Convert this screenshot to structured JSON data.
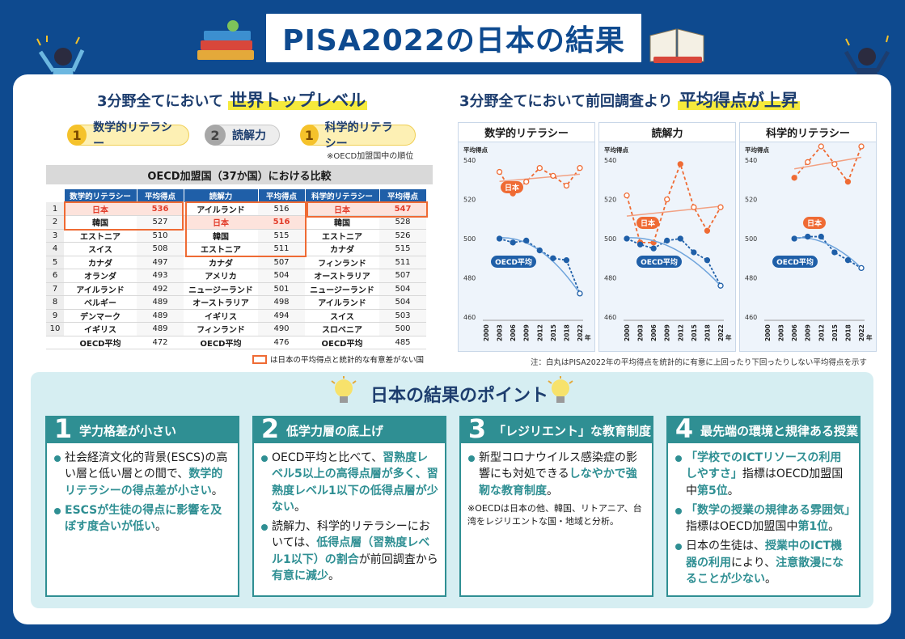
{
  "title": "PISA2022の日本の結果",
  "left_section": {
    "heading_prefix": "3分野全てにおいて",
    "heading_highlight": "世界トップレベル",
    "ranks": [
      {
        "rank": "1",
        "label": "数学的リテラシー",
        "color": "#f5c22b"
      },
      {
        "rank": "2",
        "label": "読解力",
        "color": "#a7a7a7"
      },
      {
        "rank": "1",
        "label": "科学的リテラシー",
        "color": "#f5c22b"
      }
    ],
    "rank_note": "※OECD加盟国中の順位",
    "comparison_title": "OECD加盟国（37か国）における比較",
    "table_headers": [
      "数学的リテラシー",
      "平均得点",
      "読解力",
      "平均得点",
      "科学的リテラシー",
      "平均得点"
    ],
    "rows": [
      {
        "n": "1",
        "m": "日本",
        "ms": "536",
        "r": "アイルランド",
        "rs": "516",
        "s": "日本",
        "ss": "547"
      },
      {
        "n": "2",
        "m": "韓国",
        "ms": "527",
        "r": "日本",
        "rs": "516",
        "s": "韓国",
        "ss": "528"
      },
      {
        "n": "3",
        "m": "エストニア",
        "ms": "510",
        "r": "韓国",
        "rs": "515",
        "s": "エストニア",
        "ss": "526"
      },
      {
        "n": "4",
        "m": "スイス",
        "ms": "508",
        "r": "エストニア",
        "rs": "511",
        "s": "カナダ",
        "ss": "515"
      },
      {
        "n": "5",
        "m": "カナダ",
        "ms": "497",
        "r": "カナダ",
        "rs": "507",
        "s": "フィンランド",
        "ss": "511"
      },
      {
        "n": "6",
        "m": "オランダ",
        "ms": "493",
        "r": "アメリカ",
        "rs": "504",
        "s": "オーストラリア",
        "ss": "507"
      },
      {
        "n": "7",
        "m": "アイルランド",
        "ms": "492",
        "r": "ニュージーランド",
        "rs": "501",
        "s": "ニュージーランド",
        "ss": "504"
      },
      {
        "n": "8",
        "m": "ベルギー",
        "ms": "489",
        "r": "オーストラリア",
        "rs": "498",
        "s": "アイルランド",
        "ss": "504"
      },
      {
        "n": "9",
        "m": "デンマーク",
        "ms": "489",
        "r": "イギリス",
        "rs": "494",
        "s": "スイス",
        "ss": "503"
      },
      {
        "n": "10",
        "m": "イギリス",
        "ms": "489",
        "r": "フィンランド",
        "rs": "490",
        "s": "スロベニア",
        "ss": "500"
      },
      {
        "n": "",
        "m": "OECD平均",
        "ms": "472",
        "r": "OECD平均",
        "rs": "476",
        "s": "OECD平均",
        "ss": "485"
      }
    ],
    "legend_text": "は日本の平均得点と統計的な有意差がない国"
  },
  "right_section": {
    "heading_prefix": "3分野全てにおいて前回調査より",
    "heading_highlight": "平均得点が上昇",
    "note": "注：白丸はPISA2022年の平均得点を統計的に有意に上回ったり下回ったりしない平均得点を示す"
  },
  "chart_data": [
    {
      "type": "line",
      "title": "数学的リテラシー",
      "ylabel": "平均得点",
      "xlabel": "年",
      "x": [
        "2000",
        "2003",
        "2006",
        "2009",
        "2012",
        "2015",
        "2018",
        "2022"
      ],
      "ylim": [
        460,
        540
      ],
      "yticks": [
        460,
        480,
        500,
        520,
        540
      ],
      "series": [
        {
          "name": "日本",
          "values": [
            null,
            534,
            523,
            529,
            536,
            532,
            527,
            536
          ],
          "open": [
            0,
            1,
            0,
            1,
            1,
            1,
            1,
            1
          ],
          "color": "#ef6b34"
        },
        {
          "name": "OECD平均",
          "values": [
            null,
            500,
            498,
            499,
            494,
            490,
            489,
            472
          ],
          "open": [
            0,
            0,
            0,
            0,
            0,
            0,
            0,
            1
          ],
          "color": "#1f5fa8"
        }
      ]
    },
    {
      "type": "line",
      "title": "読解力",
      "ylabel": "平均得点",
      "xlabel": "年",
      "x": [
        "2000",
        "2003",
        "2006",
        "2009",
        "2012",
        "2015",
        "2018",
        "2022"
      ],
      "ylim": [
        460,
        540
      ],
      "yticks": [
        460,
        480,
        500,
        520,
        540
      ],
      "series": [
        {
          "name": "日本",
          "values": [
            522,
            498,
            498,
            520,
            538,
            516,
            504,
            516
          ],
          "open": [
            1,
            0,
            0,
            1,
            0,
            1,
            0,
            1
          ],
          "color": "#ef6b34"
        },
        {
          "name": "OECD平均",
          "values": [
            500,
            497,
            495,
            499,
            500,
            493,
            489,
            476
          ],
          "open": [
            0,
            0,
            0,
            0,
            0,
            0,
            0,
            1
          ],
          "color": "#1f5fa8"
        }
      ]
    },
    {
      "type": "line",
      "title": "科学的リテラシー",
      "ylabel": "平均得点",
      "xlabel": "年",
      "x": [
        "2000",
        "2003",
        "2006",
        "2009",
        "2012",
        "2015",
        "2018",
        "2022"
      ],
      "ylim": [
        460,
        540
      ],
      "yticks": [
        460,
        480,
        500,
        520,
        540
      ],
      "series": [
        {
          "name": "日本",
          "values": [
            null,
            null,
            531,
            539,
            547,
            538,
            529,
            547
          ],
          "open": [
            0,
            0,
            0,
            1,
            1,
            1,
            0,
            1
          ],
          "color": "#ef6b34"
        },
        {
          "name": "OECD平均",
          "values": [
            null,
            null,
            500,
            501,
            501,
            493,
            489,
            485
          ],
          "open": [
            0,
            0,
            0,
            0,
            0,
            0,
            0,
            1
          ],
          "color": "#1f5fa8"
        }
      ]
    }
  ],
  "points": {
    "title": "日本の結果のポイント",
    "cards": [
      {
        "number": "1",
        "title": "学力格差が小さい",
        "items": [
          [
            {
              "t": "社会経済文化的背景(ESCS)の高い層と低い層との間で、"
            },
            {
              "t": "数学的リテラシーの得点差が小さい",
              "h": true
            },
            {
              "t": "。"
            }
          ],
          [
            {
              "t": "ESCSが生徒の得点に影響を及ぼす度合いが低い",
              "h": true
            },
            {
              "t": "。"
            }
          ]
        ]
      },
      {
        "number": "2",
        "title": "低学力層の底上げ",
        "items": [
          [
            {
              "t": "OECD平均と比べて、"
            },
            {
              "t": "習熟度レベル5以上の高得点層が多く、習熟度レベル1以下の低得点層が少ない",
              "h": true
            },
            {
              "t": "。"
            }
          ],
          [
            {
              "t": "読解力、科学的リテラシーにおいては、"
            },
            {
              "t": "低得点層（習熟度レベル1以下）の割合",
              "h": true
            },
            {
              "t": "が前回調査から"
            },
            {
              "t": "有意に減少",
              "h": true
            },
            {
              "t": "。"
            }
          ]
        ]
      },
      {
        "number": "3",
        "title": "「レジリエント」な教育制度",
        "items": [
          [
            {
              "t": "新型コロナウイルス感染症の影響にも対処できる"
            },
            {
              "t": "しなやかで強靭な教育制度",
              "h": true
            },
            {
              "t": "。"
            }
          ]
        ],
        "note": "※OECDは日本の他、韓国、リトアニア、台湾をレジリエントな国・地域と分析。"
      },
      {
        "number": "4",
        "title": "最先端の環境と規律ある授業",
        "items": [
          [
            {
              "t": "「学校でのICTリソースの利用しやすさ」",
              "h": true
            },
            {
              "t": "指標はOECD加盟国中"
            },
            {
              "t": "第5位",
              "h": true
            },
            {
              "t": "。"
            }
          ],
          [
            {
              "t": "「数学の授業の規律ある雰囲気」",
              "h": true
            },
            {
              "t": "指標はOECD加盟国中"
            },
            {
              "t": "第1位",
              "h": true
            },
            {
              "t": "。"
            }
          ],
          [
            {
              "t": "日本の生徒は、"
            },
            {
              "t": "授業中のICT機器の利用",
              "h": true
            },
            {
              "t": "により、"
            },
            {
              "t": "注意散漫になることが少ない",
              "h": true
            },
            {
              "t": "。"
            }
          ]
        ]
      }
    ]
  }
}
